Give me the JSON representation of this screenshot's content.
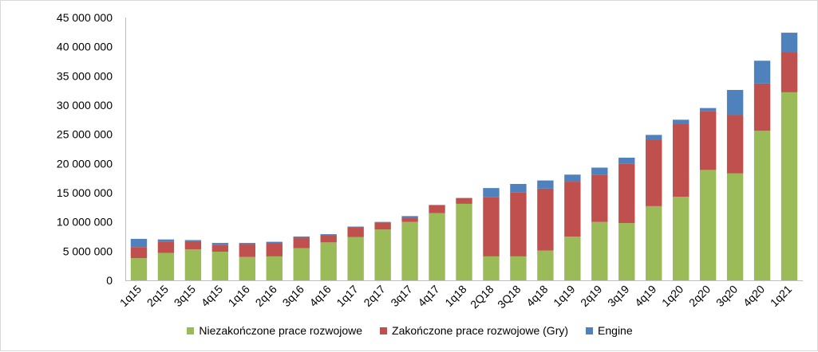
{
  "chart_data": {
    "type": "bar",
    "stacked": true,
    "categories": [
      "1q15",
      "2q15",
      "3q15",
      "4q15",
      "1q16",
      "2q16",
      "3q16",
      "4q16",
      "1q17",
      "2q17",
      "3q17",
      "4q17",
      "1q18",
      "2Q18",
      "3Q18",
      "4q18",
      "1q19",
      "2q19",
      "3q19",
      "4q19",
      "1q20",
      "2q20",
      "3q20",
      "4q20",
      "1q21"
    ],
    "series": [
      {
        "name": "Niezakończone prace rozwojowe",
        "color": "#9bbb59",
        "values": [
          3800000,
          4700000,
          5300000,
          4900000,
          4000000,
          4100000,
          5500000,
          6500000,
          7400000,
          8700000,
          10000000,
          11500000,
          13100000,
          4100000,
          4100000,
          5100000,
          7500000,
          10000000,
          9800000,
          12700000,
          14300000,
          18900000,
          18300000,
          25600000,
          32200000
        ]
      },
      {
        "name": "Zakończone prace rozwojowe (Gry)",
        "color": "#c0504d",
        "values": [
          1900000,
          1900000,
          1400000,
          1200000,
          2200000,
          2300000,
          1800000,
          1200000,
          1600000,
          1200000,
          700000,
          1400000,
          1000000,
          10100000,
          11000000,
          10600000,
          9400000,
          8100000,
          10200000,
          11300000,
          12500000,
          10100000,
          10000000,
          8100000,
          6800000
        ]
      },
      {
        "name": "Engine",
        "color": "#4f81bd",
        "values": [
          1400000,
          400000,
          200000,
          300000,
          200000,
          200000,
          200000,
          200000,
          200000,
          100000,
          300000,
          0,
          0,
          1600000,
          1400000,
          1400000,
          1200000,
          1200000,
          1000000,
          900000,
          700000,
          500000,
          4300000,
          3900000,
          3400000
        ]
      }
    ],
    "yticks": [
      "0",
      "5 000 000",
      "10 000 000",
      "15 000 000",
      "20 000 000",
      "25 000 000",
      "30 000 000",
      "35 000 000",
      "40 000 000",
      "45 000 000"
    ],
    "ylim": [
      0,
      45000000
    ],
    "ytick_step": 5000000,
    "grid": false,
    "legend_position": "bottom"
  }
}
